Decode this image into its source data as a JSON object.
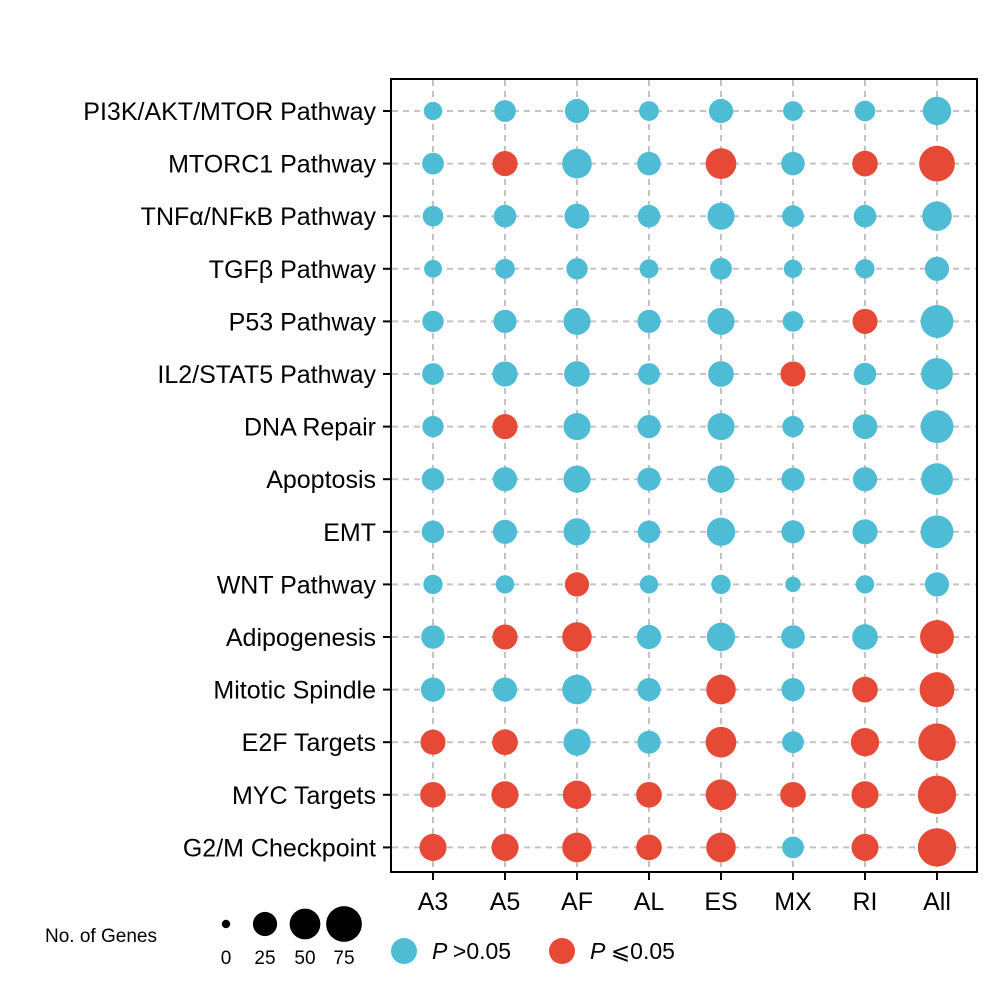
{
  "chart_data": {
    "type": "scatter",
    "subtype": "dot-matrix",
    "title": "",
    "xlabel": "",
    "ylabel": "",
    "columns": [
      "A3",
      "A5",
      "AF",
      "AL",
      "ES",
      "MX",
      "RI",
      "All"
    ],
    "rows": [
      "PI3K/AKT/MTOR Pathway",
      "MTORC1 Pathway",
      "TNFα/NFκB Pathway",
      "TGFβ Pathway",
      "P53 Pathway",
      "IL2/STAT5 Pathway",
      "DNA Repair",
      "Apoptosis",
      "EMT",
      "WNT Pathway",
      "Adipogenesis",
      "Mitotic Spindle",
      "E2F Targets",
      "MYC Targets",
      "G2/M Checkpoint"
    ],
    "gene_counts": [
      [
        10,
        18,
        25,
        13,
        25,
        13,
        15,
        40
      ],
      [
        18,
        28,
        45,
        23,
        50,
        23,
        30,
        75
      ],
      [
        15,
        20,
        28,
        20,
        35,
        18,
        20,
        45
      ],
      [
        9,
        13,
        17,
        11,
        18,
        10,
        12,
        25
      ],
      [
        17,
        22,
        35,
        22,
        35,
        15,
        28,
        60
      ],
      [
        18,
        28,
        30,
        18,
        30,
        28,
        20,
        55
      ],
      [
        17,
        28,
        35,
        22,
        35,
        17,
        27,
        60
      ],
      [
        20,
        25,
        35,
        22,
        35,
        22,
        25,
        55
      ],
      [
        20,
        25,
        35,
        20,
        40,
        22,
        28,
        60
      ],
      [
        12,
        10,
        25,
        10,
        12,
        5,
        10,
        25
      ],
      [
        23,
        28,
        45,
        25,
        40,
        23,
        30,
        65
      ],
      [
        25,
        25,
        45,
        22,
        45,
        22,
        30,
        70
      ],
      [
        28,
        30,
        35,
        22,
        50,
        18,
        40,
        85
      ],
      [
        30,
        35,
        40,
        30,
        50,
        30,
        35,
        90
      ],
      [
        35,
        35,
        45,
        30,
        45,
        18,
        35,
        90
      ]
    ],
    "significant": [
      [
        false,
        false,
        false,
        false,
        false,
        false,
        false,
        false
      ],
      [
        false,
        true,
        false,
        false,
        true,
        false,
        true,
        true
      ],
      [
        false,
        false,
        false,
        false,
        false,
        false,
        false,
        false
      ],
      [
        false,
        false,
        false,
        false,
        false,
        false,
        false,
        false
      ],
      [
        false,
        false,
        false,
        false,
        false,
        false,
        true,
        false
      ],
      [
        false,
        false,
        false,
        false,
        false,
        true,
        false,
        false
      ],
      [
        false,
        true,
        false,
        false,
        false,
        false,
        false,
        false
      ],
      [
        false,
        false,
        false,
        false,
        false,
        false,
        false,
        false
      ],
      [
        false,
        false,
        false,
        false,
        false,
        false,
        false,
        false
      ],
      [
        false,
        false,
        true,
        false,
        false,
        false,
        false,
        false
      ],
      [
        false,
        true,
        true,
        false,
        false,
        false,
        false,
        true
      ],
      [
        false,
        false,
        false,
        false,
        true,
        false,
        true,
        true
      ],
      [
        true,
        true,
        false,
        false,
        true,
        false,
        true,
        true
      ],
      [
        true,
        true,
        true,
        true,
        true,
        true,
        true,
        true
      ],
      [
        true,
        true,
        true,
        true,
        true,
        false,
        true,
        true
      ]
    ],
    "colors": {
      "not_significant": "#4fbcd6",
      "significant": "#e64a36",
      "grid": "#c4c4c4",
      "size_legend": "#000000"
    },
    "grid": true,
    "size_legend": {
      "title": "No. of Genes",
      "values": [
        0,
        25,
        50,
        75
      ],
      "labels": [
        "0",
        "25",
        "50",
        "75"
      ]
    },
    "color_legend": [
      {
        "key": "not_significant",
        "italic": "P",
        "label": ">0.05"
      },
      {
        "key": "significant",
        "italic": "P",
        "label": "⩽0.05"
      }
    ],
    "legend_position": "bottom"
  }
}
